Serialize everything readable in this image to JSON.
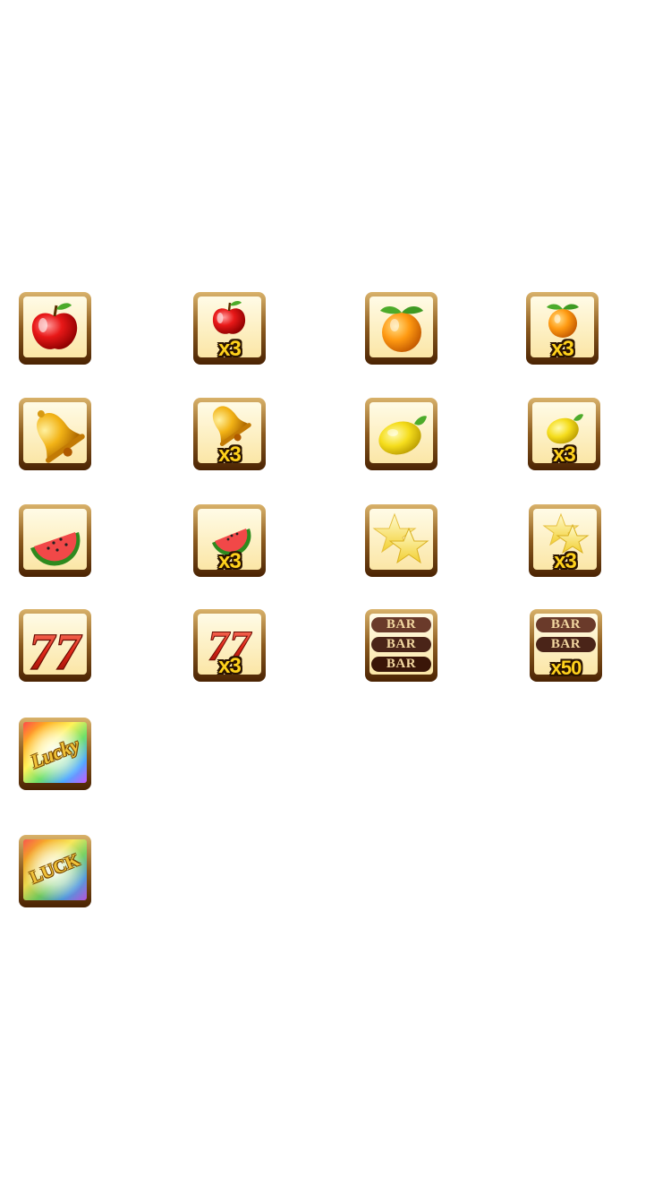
{
  "symbols": [
    {
      "id": "apple",
      "icon": "apple-icon",
      "multiplier": ""
    },
    {
      "id": "apple-x3",
      "icon": "apple-icon",
      "multiplier": "x3"
    },
    {
      "id": "orange",
      "icon": "orange-icon",
      "multiplier": ""
    },
    {
      "id": "orange-x3",
      "icon": "orange-icon",
      "multiplier": "x3"
    },
    {
      "id": "bell",
      "icon": "bell-icon",
      "multiplier": ""
    },
    {
      "id": "bell-x3",
      "icon": "bell-icon",
      "multiplier": "x3"
    },
    {
      "id": "lemon",
      "icon": "lemon-icon",
      "multiplier": ""
    },
    {
      "id": "lemon-x3",
      "icon": "lemon-icon",
      "multiplier": "x3"
    },
    {
      "id": "watermelon",
      "icon": "watermelon-icon",
      "multiplier": ""
    },
    {
      "id": "watermelon-x3",
      "icon": "watermelon-icon",
      "multiplier": "x3"
    },
    {
      "id": "star",
      "icon": "star-icon",
      "multiplier": ""
    },
    {
      "id": "star-x3",
      "icon": "star-icon",
      "multiplier": "x3"
    },
    {
      "id": "seven",
      "icon": "seven-icon",
      "multiplier": ""
    },
    {
      "id": "seven-x3",
      "icon": "seven-icon",
      "multiplier": "x3"
    },
    {
      "id": "bar",
      "icon": "bar-icon",
      "multiplier": ""
    },
    {
      "id": "bar-x50",
      "icon": "bar-icon",
      "multiplier": "x50"
    },
    {
      "id": "lucky",
      "icon": "lucky-icon",
      "multiplier": ""
    },
    {
      "id": "luck",
      "icon": "luck-icon",
      "multiplier": ""
    }
  ],
  "labels": {
    "x3": "x3",
    "x50": "x50",
    "bar": "BAR",
    "seven": "77",
    "lucky": "Lucky",
    "luck": "LUCK"
  },
  "colors": {
    "frame": "#5a2e05",
    "frame_light": "#c79a4a",
    "tile_bg": "#fff3c8",
    "multiplier": "#ffd21c"
  }
}
